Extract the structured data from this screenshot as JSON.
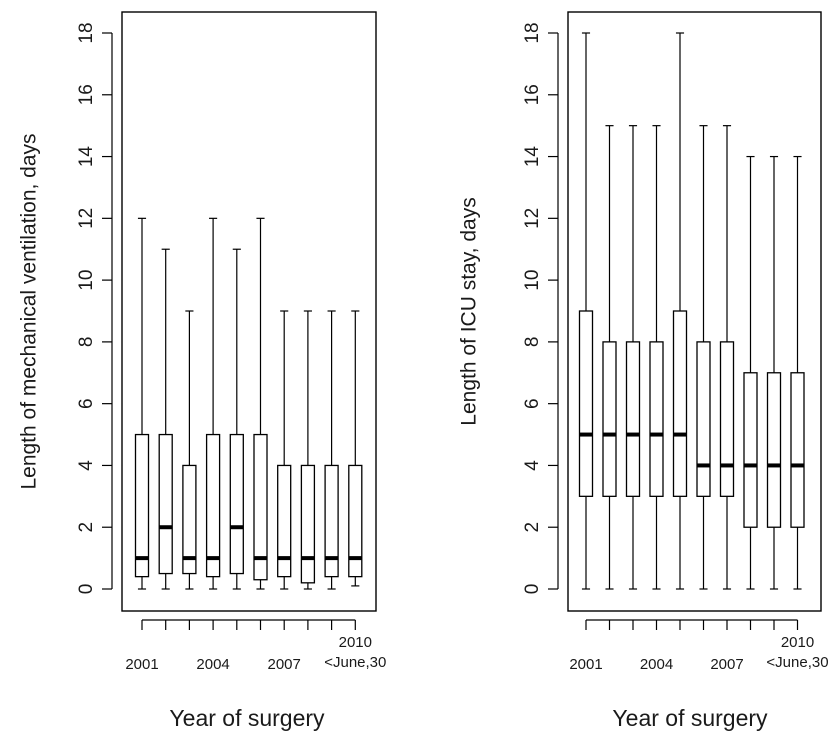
{
  "chart_data": [
    {
      "type": "boxplot",
      "xlabel": "Year of surgery",
      "ylabel": "Length of mechanical ventilation, days",
      "ylim": [
        0,
        18
      ],
      "yticks": [
        0,
        2,
        4,
        6,
        8,
        10,
        12,
        14,
        16,
        18
      ],
      "x_tick_labels": [
        {
          "index": 0,
          "lines": [
            "2001"
          ]
        },
        {
          "index": 3,
          "lines": [
            "2004"
          ]
        },
        {
          "index": 6,
          "lines": [
            "2007"
          ]
        },
        {
          "index": 9,
          "lines": [
            "2010",
            "<June,30"
          ]
        }
      ],
      "boxes": [
        {
          "min": 0,
          "q1": 0.4,
          "median": 1,
          "q3": 5,
          "max": 12
        },
        {
          "min": 0,
          "q1": 0.5,
          "median": 2,
          "q3": 5,
          "max": 11
        },
        {
          "min": 0,
          "q1": 0.5,
          "median": 1,
          "q3": 4,
          "max": 9
        },
        {
          "min": 0,
          "q1": 0.4,
          "median": 1,
          "q3": 5,
          "max": 12
        },
        {
          "min": 0,
          "q1": 0.5,
          "median": 2,
          "q3": 5,
          "max": 11
        },
        {
          "min": 0,
          "q1": 0.3,
          "median": 1,
          "q3": 5,
          "max": 12
        },
        {
          "min": 0,
          "q1": 0.4,
          "median": 1,
          "q3": 4,
          "max": 9
        },
        {
          "min": 0,
          "q1": 0.2,
          "median": 1,
          "q3": 4,
          "max": 9
        },
        {
          "min": 0,
          "q1": 0.4,
          "median": 1,
          "q3": 4,
          "max": 9
        },
        {
          "min": 0.1,
          "q1": 0.4,
          "median": 1,
          "q3": 4,
          "max": 9
        }
      ]
    },
    {
      "type": "boxplot",
      "xlabel": "Year of surgery",
      "ylabel": "Length of ICU stay, days",
      "ylim": [
        0,
        18
      ],
      "yticks": [
        0,
        2,
        4,
        6,
        8,
        10,
        12,
        14,
        16,
        18
      ],
      "x_tick_labels": [
        {
          "index": 0,
          "lines": [
            "2001"
          ]
        },
        {
          "index": 3,
          "lines": [
            "2004"
          ]
        },
        {
          "index": 6,
          "lines": [
            "2007"
          ]
        },
        {
          "index": 9,
          "lines": [
            "2010",
            "<June,30"
          ]
        }
      ],
      "boxes": [
        {
          "min": 0,
          "q1": 3,
          "median": 5,
          "q3": 9,
          "max": 18
        },
        {
          "min": 0,
          "q1": 3,
          "median": 5,
          "q3": 8,
          "max": 15
        },
        {
          "min": 0,
          "q1": 3,
          "median": 5,
          "q3": 8,
          "max": 15
        },
        {
          "min": 0,
          "q1": 3,
          "median": 5,
          "q3": 8,
          "max": 15
        },
        {
          "min": 0,
          "q1": 3,
          "median": 5,
          "q3": 9,
          "max": 18
        },
        {
          "min": 0,
          "q1": 3,
          "median": 4,
          "q3": 8,
          "max": 15
        },
        {
          "min": 0,
          "q1": 3,
          "median": 4,
          "q3": 8,
          "max": 15
        },
        {
          "min": 0,
          "q1": 2,
          "median": 4,
          "q3": 7,
          "max": 14
        },
        {
          "min": 0,
          "q1": 2,
          "median": 4,
          "q3": 7,
          "max": 14
        },
        {
          "min": 0,
          "q1": 2,
          "median": 4,
          "q3": 7,
          "max": 14
        }
      ]
    }
  ]
}
